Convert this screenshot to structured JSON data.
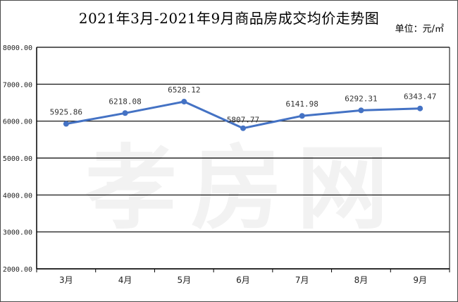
{
  "chart_title": "2021年3月-2021年9月商品房成交均价走势图",
  "unit_label": "单位：元/㎡",
  "watermark_text": "孝房网",
  "chart_data": {
    "type": "line",
    "title": "2021年3月-2021年9月商品房成交均价走势图",
    "categories": [
      "3月",
      "4月",
      "5月",
      "6月",
      "7月",
      "8月",
      "9月"
    ],
    "values": [
      5925.86,
      6218.08,
      6528.12,
      5807.77,
      6141.98,
      6292.31,
      6343.47
    ],
    "data_labels": [
      "5925.86",
      "6218.08",
      "6528.12",
      "5807.77",
      "6141.98",
      "6292.31",
      "6343.47"
    ],
    "ylim": [
      2000,
      8000
    ],
    "yticks": [
      "2000.00",
      "3000.00",
      "4000.00",
      "5000.00",
      "6000.00",
      "7000.00",
      "8000.00"
    ],
    "grid": true,
    "legend": "none",
    "line_color": "#4472C4"
  }
}
